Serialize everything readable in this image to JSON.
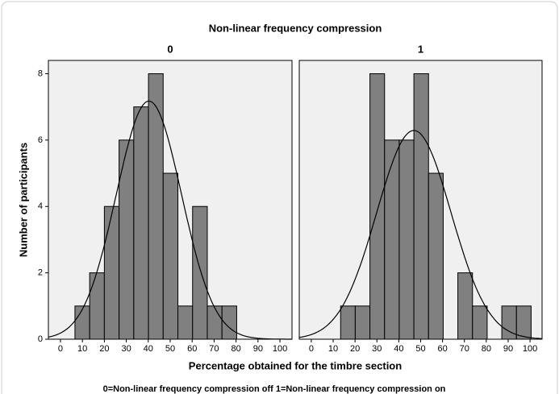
{
  "title": "Non-linear frequency compression",
  "x_label": "Percentage obtained for the timbre section",
  "y_label": "Number of participants",
  "note": "0=Non-linear frequency compression off  1=Non-linear frequency compression on",
  "chart_data": [
    {
      "type": "histogram",
      "subtitle": "0",
      "color": "#808080",
      "bins": [
        6.6,
        13.3,
        20.0,
        26.7,
        33.4,
        40.1,
        46.8,
        53.5,
        60.2,
        66.9,
        73.6,
        80.3
      ],
      "values": [
        1,
        2,
        4,
        6,
        7,
        8,
        5,
        1,
        4,
        1,
        1
      ],
      "curve": {
        "mean": 40.3,
        "sd": 14.9
      },
      "xlim": [
        -5.5,
        105.5
      ],
      "ylim": [
        0,
        8.4
      ],
      "xticks": [
        0,
        10,
        20,
        30,
        40,
        50,
        60,
        70,
        80,
        90,
        100
      ],
      "yticks": [
        0,
        2,
        4,
        6,
        8
      ]
    },
    {
      "type": "histogram",
      "subtitle": "1",
      "color": "#808080",
      "bins": [
        13.4,
        20.1,
        26.8,
        33.5,
        40.2,
        46.9,
        53.6,
        60.3,
        67.0,
        73.7,
        80.4,
        87.1,
        93.8,
        100.5
      ],
      "values": [
        1,
        1,
        8,
        6,
        6,
        8,
        5,
        0,
        2,
        1,
        0,
        1,
        1
      ],
      "curve": {
        "mean": 46.9,
        "sd": 17.0
      },
      "xlim": [
        -5.5,
        105.5
      ],
      "ylim": [
        0,
        8.4
      ],
      "xticks": [
        0,
        10,
        20,
        30,
        40,
        50,
        60,
        70,
        80,
        90,
        100
      ],
      "yticks": [
        0,
        2,
        4,
        6,
        8
      ]
    }
  ]
}
